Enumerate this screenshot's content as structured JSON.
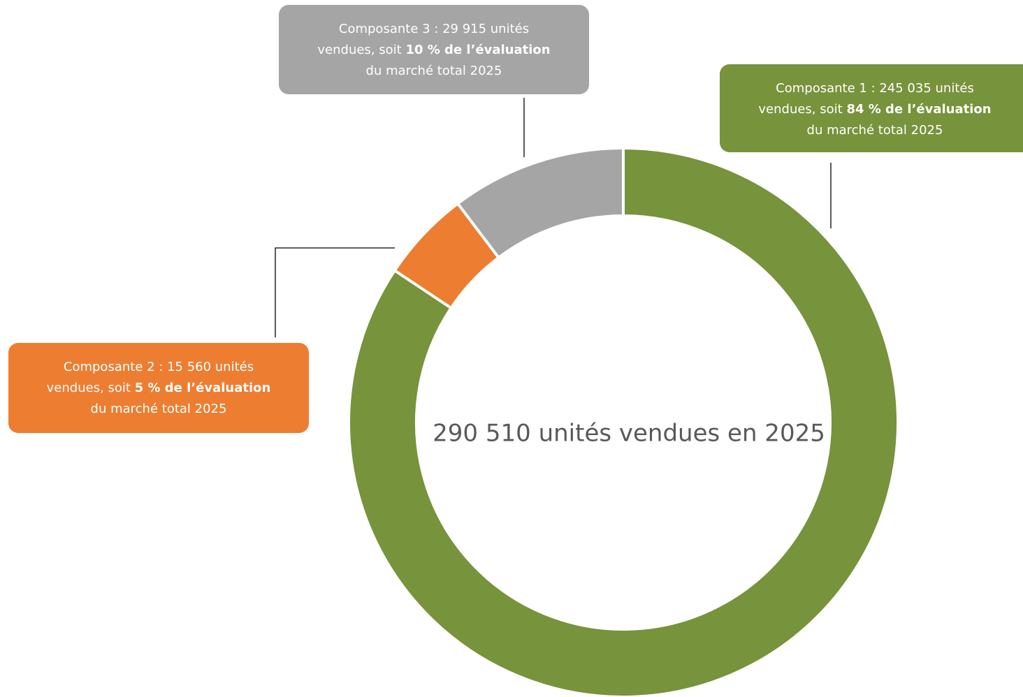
{
  "chart_data": {
    "type": "donut",
    "values": [
      245035,
      15560,
      29915
    ],
    "colors": [
      "#77933c",
      "#ed7d31",
      "#a5a5a5"
    ],
    "center_label": "290 510 unités vendues en 2025",
    "annotations": [
      {
        "line1": "Composante 1 : 245 035 unités",
        "line2": "vendues, soit ",
        "line2_bold": "84 % de l’évaluation",
        "line3": "du marché total 2025"
      },
      {
        "line1": "Composante 2 : 15 560 unités",
        "line2": "vendues, soit ",
        "line2_bold": "5 % de l’évaluation",
        "line3": "du marché total 2025"
      },
      {
        "line1": "Composante 3 : 29 915 unités",
        "line2": "vendues, soit ",
        "line2_bold": "10 % de l’évaluation",
        "line3": "du marché total 2025"
      }
    ]
  }
}
